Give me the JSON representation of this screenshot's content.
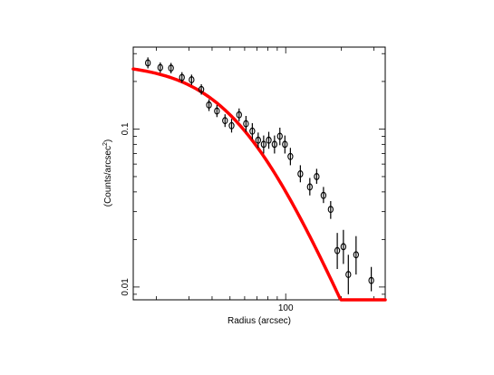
{
  "chart_data": {
    "type": "scatter",
    "title": "",
    "xlabel": "Radius (arcsec)",
    "ylabel_main": "(Counts/arcsec",
    "ylabel_sup": "2",
    "ylabel_close": ")",
    "xscale": "log",
    "yscale": "log",
    "xlim": [
      15,
      345
    ],
    "ylim": [
      0.0083,
      0.33
    ],
    "x_tick_labels": [
      {
        "value": 100,
        "label": "100"
      }
    ],
    "y_tick_labels": [
      {
        "value": 0.1,
        "label": "0.1"
      },
      {
        "value": 0.01,
        "label": "0.01"
      }
    ],
    "grid": false,
    "legend": "none",
    "colors": {
      "model": "#ff0000",
      "data": "#000000"
    },
    "series": [
      {
        "kind": "points_with_errorbars",
        "points": [
          {
            "x": 18.0,
            "y": 0.262,
            "ylo": 0.242,
            "yhi": 0.284
          },
          {
            "x": 21.0,
            "y": 0.245,
            "ylo": 0.227,
            "yhi": 0.264
          },
          {
            "x": 24.0,
            "y": 0.243,
            "ylo": 0.225,
            "yhi": 0.262
          },
          {
            "x": 27.5,
            "y": 0.212,
            "ylo": 0.196,
            "yhi": 0.229
          },
          {
            "x": 31.0,
            "y": 0.205,
            "ylo": 0.19,
            "yhi": 0.221
          },
          {
            "x": 35.0,
            "y": 0.178,
            "ylo": 0.165,
            "yhi": 0.192
          },
          {
            "x": 38.5,
            "y": 0.142,
            "ylo": 0.13,
            "yhi": 0.154
          },
          {
            "x": 42.5,
            "y": 0.13,
            "ylo": 0.119,
            "yhi": 0.142
          },
          {
            "x": 47.0,
            "y": 0.113,
            "ylo": 0.103,
            "yhi": 0.124
          },
          {
            "x": 51.0,
            "y": 0.105,
            "ylo": 0.095,
            "yhi": 0.116
          },
          {
            "x": 56.0,
            "y": 0.123,
            "ylo": 0.112,
            "yhi": 0.135
          },
          {
            "x": 61.0,
            "y": 0.108,
            "ylo": 0.096,
            "yhi": 0.121
          },
          {
            "x": 66.0,
            "y": 0.097,
            "ylo": 0.086,
            "yhi": 0.109
          },
          {
            "x": 71.0,
            "y": 0.085,
            "ylo": 0.076,
            "yhi": 0.095
          },
          {
            "x": 76.0,
            "y": 0.08,
            "ylo": 0.07,
            "yhi": 0.091
          },
          {
            "x": 81.0,
            "y": 0.085,
            "ylo": 0.075,
            "yhi": 0.096
          },
          {
            "x": 87.0,
            "y": 0.08,
            "ylo": 0.07,
            "yhi": 0.091
          },
          {
            "x": 93.0,
            "y": 0.09,
            "ylo": 0.079,
            "yhi": 0.102
          },
          {
            "x": 99.0,
            "y": 0.08,
            "ylo": 0.07,
            "yhi": 0.091
          },
          {
            "x": 106.0,
            "y": 0.067,
            "ylo": 0.059,
            "yhi": 0.076
          },
          {
            "x": 120.0,
            "y": 0.052,
            "ylo": 0.046,
            "yhi": 0.059
          },
          {
            "x": 135.0,
            "y": 0.043,
            "ylo": 0.038,
            "yhi": 0.049
          },
          {
            "x": 147.0,
            "y": 0.05,
            "ylo": 0.045,
            "yhi": 0.056
          },
          {
            "x": 160.0,
            "y": 0.038,
            "ylo": 0.034,
            "yhi": 0.043
          },
          {
            "x": 175.0,
            "y": 0.031,
            "ylo": 0.027,
            "yhi": 0.035
          },
          {
            "x": 190.0,
            "y": 0.017,
            "ylo": 0.013,
            "yhi": 0.022
          },
          {
            "x": 205.0,
            "y": 0.018,
            "ylo": 0.014,
            "yhi": 0.023
          },
          {
            "x": 218.0,
            "y": 0.012,
            "ylo": 0.009,
            "yhi": 0.016
          },
          {
            "x": 240.0,
            "y": 0.016,
            "ylo": 0.012,
            "yhi": 0.021
          },
          {
            "x": 290.0,
            "y": 0.011,
            "ylo": 0.0094,
            "yhi": 0.0134
          }
        ]
      },
      {
        "kind": "model_curve",
        "function": "beta",
        "params": {
          "S0": 0.262,
          "rc": 58,
          "beta": 0.62
        },
        "x_range": [
          15,
          345
        ]
      }
    ]
  }
}
